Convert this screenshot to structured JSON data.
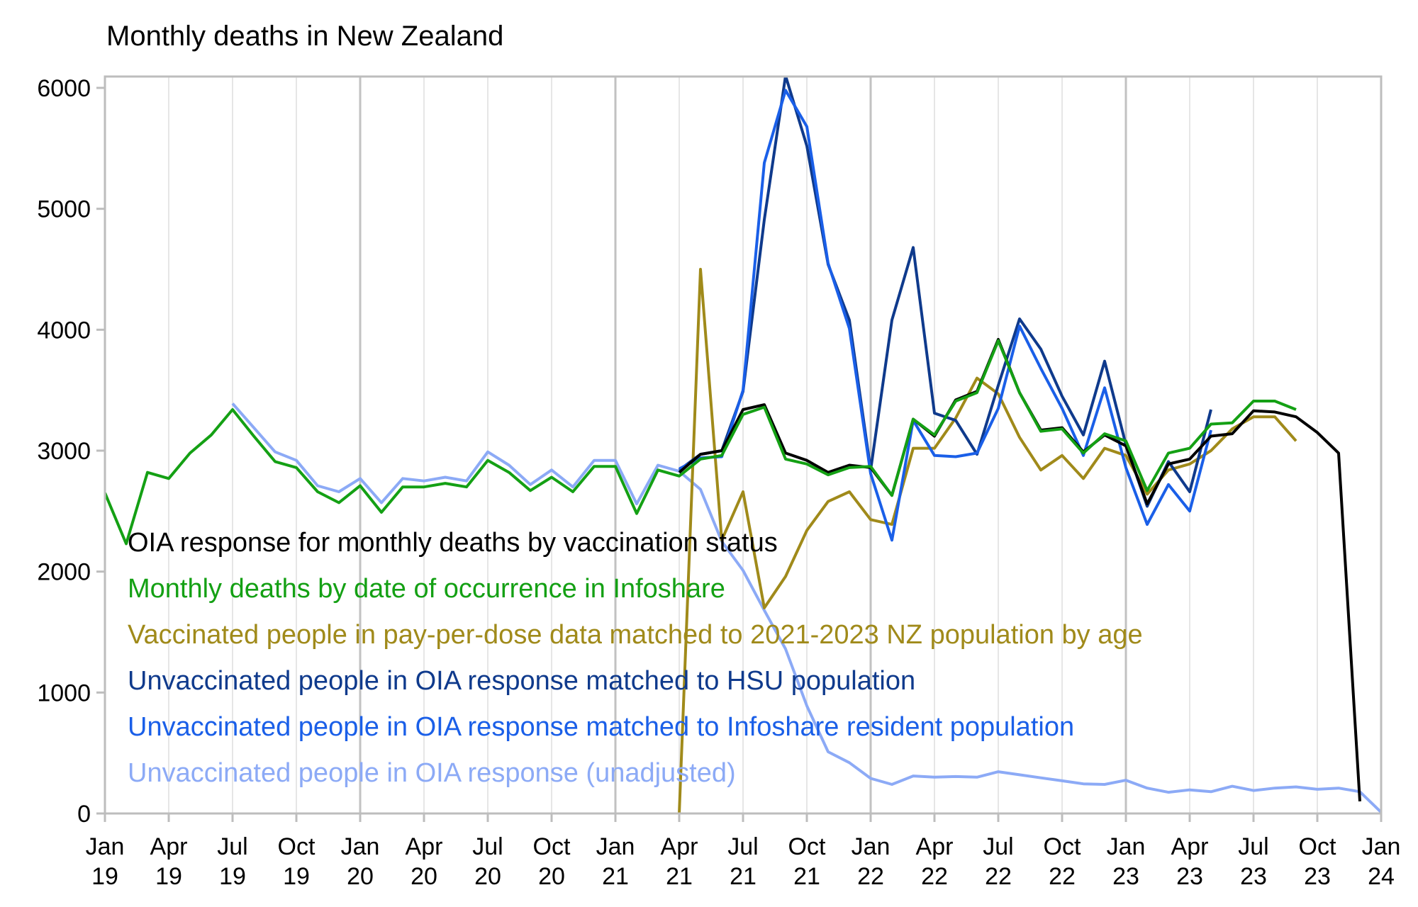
{
  "chart_data": {
    "type": "line",
    "title": "Monthly deaths in New Zealand",
    "xlabel": "",
    "ylabel": "",
    "x_start": "2019-01",
    "x_range": [
      "2019-01",
      "2024-01"
    ],
    "ylim": [
      0,
      6000
    ],
    "yticks": [
      0,
      1000,
      2000,
      3000,
      4000,
      5000,
      6000
    ],
    "xticks": [
      {
        "month": "2019-01",
        "label1": "Jan",
        "label2": "19"
      },
      {
        "month": "2019-04",
        "label1": "Apr",
        "label2": "19"
      },
      {
        "month": "2019-07",
        "label1": "Jul",
        "label2": "19"
      },
      {
        "month": "2019-10",
        "label1": "Oct",
        "label2": "19"
      },
      {
        "month": "2020-01",
        "label1": "Jan",
        "label2": "20"
      },
      {
        "month": "2020-04",
        "label1": "Apr",
        "label2": "20"
      },
      {
        "month": "2020-07",
        "label1": "Jul",
        "label2": "20"
      },
      {
        "month": "2020-10",
        "label1": "Oct",
        "label2": "20"
      },
      {
        "month": "2021-01",
        "label1": "Jan",
        "label2": "21"
      },
      {
        "month": "2021-04",
        "label1": "Apr",
        "label2": "21"
      },
      {
        "month": "2021-07",
        "label1": "Jul",
        "label2": "21"
      },
      {
        "month": "2021-10",
        "label1": "Oct",
        "label2": "21"
      },
      {
        "month": "2022-01",
        "label1": "Jan",
        "label2": "22"
      },
      {
        "month": "2022-04",
        "label1": "Apr",
        "label2": "22"
      },
      {
        "month": "2022-07",
        "label1": "Jul",
        "label2": "22"
      },
      {
        "month": "2022-10",
        "label1": "Oct",
        "label2": "22"
      },
      {
        "month": "2023-01",
        "label1": "Jan",
        "label2": "23"
      },
      {
        "month": "2023-04",
        "label1": "Apr",
        "label2": "23"
      },
      {
        "month": "2023-07",
        "label1": "Jul",
        "label2": "23"
      },
      {
        "month": "2023-10",
        "label1": "Oct",
        "label2": "23"
      },
      {
        "month": "2024-01",
        "label1": "Jan",
        "label2": "24"
      }
    ],
    "grid": true,
    "legend_position": "lower-left inside",
    "series": [
      {
        "name": "Unvaccinated people in OIA response (unadjusted)",
        "color": "#8caaf6",
        "start": "2019-07",
        "values": [
          3390,
          3190,
          2990,
          2920,
          2710,
          2660,
          2770,
          2570,
          2770,
          2750,
          2780,
          2750,
          2990,
          2880,
          2720,
          2840,
          2700,
          2920,
          2920,
          2560,
          2880,
          2830,
          2680,
          2250,
          2010,
          1680,
          1360,
          890,
          510,
          420,
          290,
          240,
          310,
          300,
          305,
          300,
          345,
          320,
          295,
          270,
          245,
          240,
          275,
          210,
          175,
          195,
          180,
          225,
          190,
          210,
          220,
          200,
          210,
          180,
          10
        ]
      },
      {
        "name": "Vaccinated people in pay-per-dose data matched to 2021-2023 NZ population by age",
        "color": "#a08a1a",
        "start": "2021-04",
        "values": [
          0,
          4500,
          2260,
          2660,
          1700,
          1960,
          2340,
          2580,
          2660,
          2430,
          2390,
          3020,
          3020,
          3270,
          3600,
          3470,
          3110,
          2840,
          2960,
          2770,
          3020,
          2960,
          2640,
          2840,
          2890,
          3000,
          3180,
          3280,
          3280,
          3080
        ]
      },
      {
        "name": "Unvaccinated people in OIA response matched to HSU population",
        "color": "#0f3a8c",
        "start": "2021-04",
        "values": [
          2840,
          2970,
          3000,
          3490,
          4910,
          6100,
          5520,
          4540,
          4080,
          2840,
          4080,
          4680,
          3310,
          3250,
          2970,
          3540,
          4090,
          3840,
          3450,
          3130,
          3740,
          3050,
          2540,
          2910,
          2660,
          3340
        ]
      },
      {
        "name": "Unvaccinated people in OIA response matched to Infoshare resident population",
        "color": "#1a5fe8",
        "start": "2021-04",
        "values": [
          2850,
          2940,
          2950,
          3500,
          5380,
          5980,
          5680,
          4550,
          4010,
          2810,
          2260,
          3250,
          2960,
          2950,
          2980,
          3350,
          4030,
          3680,
          3350,
          2960,
          3520,
          2860,
          2390,
          2720,
          2500,
          3170
        ]
      },
      {
        "name": "OIA response for monthly deaths by vaccination status",
        "color": "#000000",
        "start": "2021-04",
        "values": [
          2820,
          2970,
          3000,
          3340,
          3380,
          2980,
          2920,
          2820,
          2880,
          2860,
          2630,
          3260,
          3120,
          3420,
          3490,
          3920,
          3480,
          3170,
          3190,
          2990,
          3130,
          3040,
          2560,
          2890,
          2930,
          3120,
          3140,
          3330,
          3320,
          3280,
          3150,
          2980,
          100
        ]
      },
      {
        "name": "Monthly deaths by date of occurrence in Infoshare",
        "color": "#14a014",
        "start": "2019-01",
        "values": [
          2650,
          2230,
          2820,
          2770,
          2980,
          3130,
          3340,
          3120,
          2910,
          2860,
          2660,
          2570,
          2710,
          2490,
          2700,
          2700,
          2730,
          2700,
          2920,
          2820,
          2670,
          2780,
          2660,
          2870,
          2870,
          2480,
          2840,
          2790,
          2930,
          2960,
          3300,
          3360,
          2930,
          2890,
          2800,
          2860,
          2870,
          2630,
          3260,
          3130,
          3410,
          3480,
          3910,
          3480,
          3160,
          3180,
          2980,
          3140,
          3080,
          2670,
          2980,
          3020,
          3220,
          3230,
          3410,
          3410,
          3340
        ]
      }
    ]
  },
  "legend_order": [
    "OIA response for monthly deaths by vaccination status",
    "Monthly deaths by date of occurrence in Infoshare",
    "Vaccinated people in pay-per-dose data matched to 2021-2023 NZ population by age",
    "Unvaccinated people in OIA response matched to HSU population",
    "Unvaccinated people in OIA response matched to Infoshare resident population",
    "Unvaccinated people in OIA response (unadjusted)"
  ]
}
